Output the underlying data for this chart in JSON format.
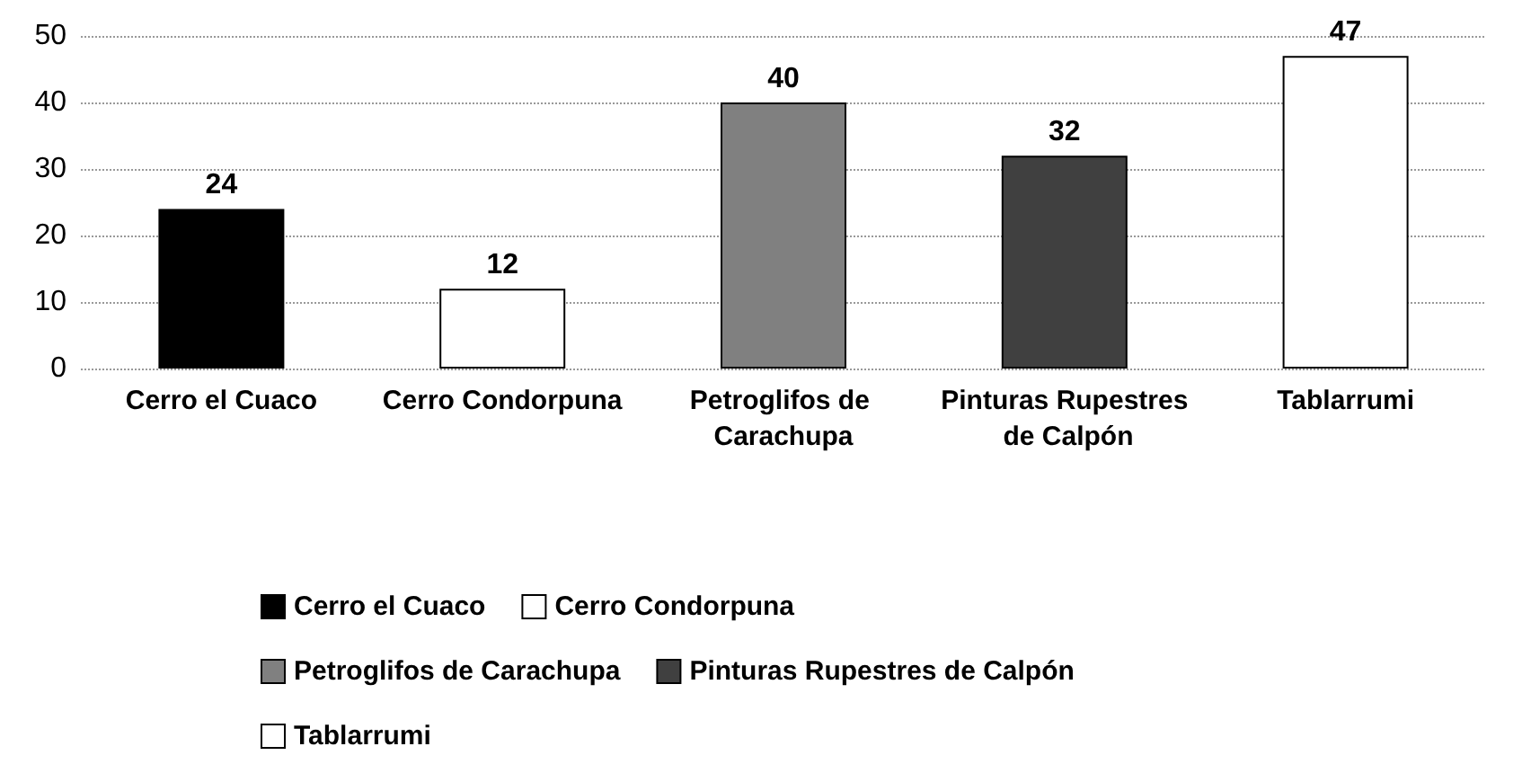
{
  "chart_data": {
    "type": "bar",
    "categories": [
      "Cerro el Cuaco",
      "Cerro Condorpuna",
      "Petroglifos de Carachupa",
      "Pinturas Rupestres de Calpón",
      "Tablarrumi"
    ],
    "series": [
      {
        "name": "Cerro el Cuaco",
        "color": "#000000",
        "values": [
          24,
          null,
          null,
          null,
          null
        ]
      },
      {
        "name": "Cerro Condorpuna",
        "color": "#ffffff",
        "values": [
          null,
          12,
          null,
          null,
          null
        ]
      },
      {
        "name": "Petroglifos de Carachupa",
        "color": "#808080",
        "values": [
          null,
          null,
          40,
          null,
          null
        ]
      },
      {
        "name": "Pinturas Rupestres de Calpón",
        "color": "#404040",
        "values": [
          null,
          null,
          null,
          32,
          null
        ]
      },
      {
        "name": "Tablarrumi",
        "color": "#ffffff",
        "values": [
          null,
          null,
          null,
          null,
          47
        ]
      }
    ],
    "ylim": [
      0,
      50
    ],
    "yticks": [
      0,
      10,
      20,
      30,
      40,
      50
    ],
    "grid": "y",
    "legend": "bottom",
    "data_labels": true
  }
}
